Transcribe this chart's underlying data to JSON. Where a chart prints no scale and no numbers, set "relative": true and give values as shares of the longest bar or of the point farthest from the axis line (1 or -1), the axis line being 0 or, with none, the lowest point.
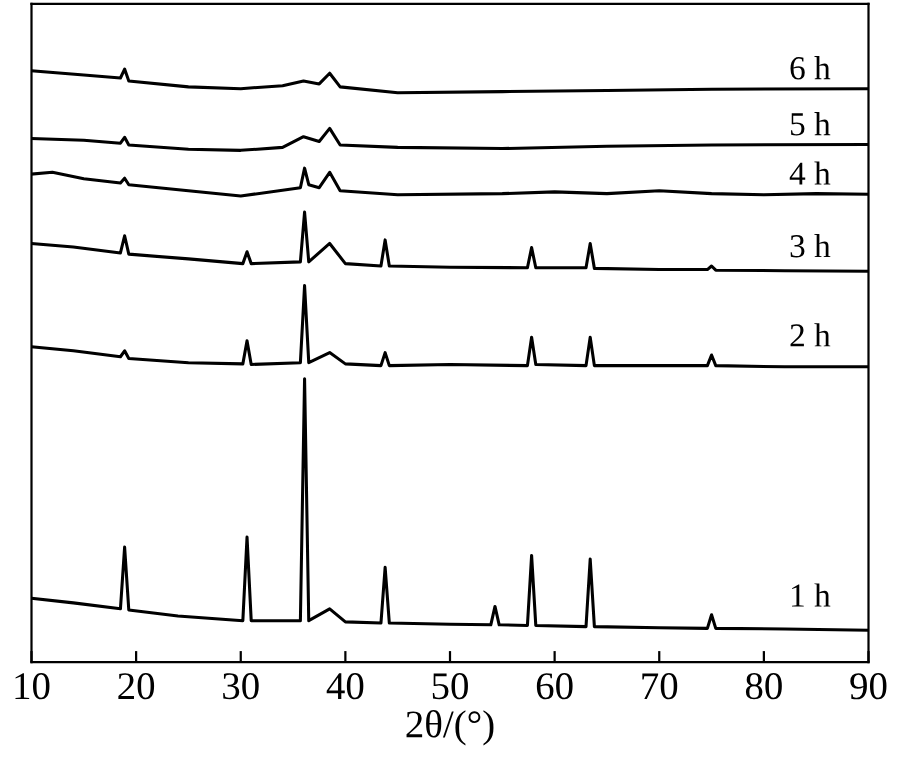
{
  "chart_data": {
    "type": "line",
    "relative": true,
    "xlabel": "2θ/(°)",
    "xlim": [
      10,
      90
    ],
    "xticks": [
      10,
      20,
      30,
      40,
      50,
      60,
      70,
      80,
      90
    ],
    "tick_labels": "x",
    "grid": false,
    "legend": false,
    "marker": "none",
    "line_style": "solid",
    "series": [
      {
        "name": "1 h",
        "color": "#000000",
        "x": [
          10,
          14,
          18.5,
          18.9,
          19.3,
          24,
          30.2,
          30.6,
          31,
          35.7,
          36.1,
          36.5,
          38.5,
          40,
          43.4,
          43.8,
          44.2,
          50,
          53.9,
          54.3,
          54.7,
          57.4,
          57.8,
          58.2,
          63,
          63.4,
          63.8,
          70,
          74.6,
          75,
          75.4,
          82,
          90
        ],
        "values": [
          0.108,
          0.1,
          0.09,
          0.194,
          0.088,
          0.078,
          0.07,
          0.211,
          0.07,
          0.07,
          0.478,
          0.07,
          0.09,
          0.068,
          0.066,
          0.16,
          0.066,
          0.064,
          0.063,
          0.094,
          0.063,
          0.062,
          0.18,
          0.062,
          0.06,
          0.174,
          0.06,
          0.058,
          0.057,
          0.08,
          0.057,
          0.056,
          0.054
        ]
      },
      {
        "name": "2 h",
        "color": "#000000",
        "x": [
          10,
          14,
          18.5,
          18.9,
          19.3,
          25,
          30.2,
          30.6,
          31,
          35.7,
          36.1,
          36.5,
          38.5,
          40,
          43.4,
          43.8,
          44.2,
          50,
          57.4,
          57.8,
          58.2,
          63,
          63.4,
          63.8,
          70,
          74.6,
          75,
          75.4,
          82,
          90
        ],
        "values": [
          0.532,
          0.525,
          0.515,
          0.525,
          0.512,
          0.505,
          0.503,
          0.542,
          0.502,
          0.505,
          0.635,
          0.505,
          0.522,
          0.503,
          0.5,
          0.522,
          0.5,
          0.502,
          0.5,
          0.548,
          0.502,
          0.5,
          0.548,
          0.5,
          0.5,
          0.5,
          0.518,
          0.5,
          0.498,
          0.498
        ]
      },
      {
        "name": "3 h",
        "color": "#000000",
        "x": [
          10,
          14,
          18.5,
          18.9,
          19.3,
          25,
          30.2,
          30.6,
          31,
          35.7,
          36.1,
          36.5,
          38.5,
          40,
          43.4,
          43.8,
          44.2,
          50,
          57.4,
          57.8,
          58.2,
          63,
          63.4,
          63.8,
          70,
          74.6,
          75,
          75.4,
          82,
          90
        ],
        "values": [
          0.706,
          0.7,
          0.69,
          0.719,
          0.688,
          0.68,
          0.672,
          0.692,
          0.672,
          0.675,
          0.759,
          0.675,
          0.706,
          0.672,
          0.668,
          0.712,
          0.668,
          0.666,
          0.665,
          0.699,
          0.665,
          0.665,
          0.706,
          0.664,
          0.662,
          0.662,
          0.668,
          0.661,
          0.66,
          0.659
        ]
      },
      {
        "name": "4 h",
        "color": "#000000",
        "x": [
          10,
          12,
          15,
          18.5,
          18.9,
          19.3,
          25,
          30,
          35.7,
          36.1,
          36.5,
          37.5,
          38.5,
          39.5,
          45,
          55,
          60,
          65,
          70,
          75,
          80,
          85,
          90
        ],
        "values": [
          0.823,
          0.826,
          0.815,
          0.808,
          0.816,
          0.805,
          0.795,
          0.786,
          0.8,
          0.833,
          0.805,
          0.8,
          0.826,
          0.795,
          0.788,
          0.79,
          0.793,
          0.79,
          0.795,
          0.79,
          0.788,
          0.79,
          0.789
        ]
      },
      {
        "name": "5 h",
        "color": "#000000",
        "x": [
          10,
          15,
          18.5,
          18.9,
          19.3,
          25,
          30,
          34,
          36,
          37.5,
          38.5,
          39.5,
          45,
          55,
          65,
          75,
          90
        ],
        "values": [
          0.883,
          0.88,
          0.875,
          0.885,
          0.872,
          0.865,
          0.863,
          0.868,
          0.886,
          0.878,
          0.9,
          0.872,
          0.868,
          0.866,
          0.87,
          0.872,
          0.873
        ]
      },
      {
        "name": "6 h",
        "color": "#000000",
        "x": [
          10,
          15,
          18.5,
          18.9,
          19.3,
          25,
          30,
          34,
          36,
          37.5,
          38.5,
          39.5,
          45,
          55,
          65,
          75,
          90
        ],
        "values": [
          0.997,
          0.99,
          0.985,
          1.0,
          0.98,
          0.97,
          0.967,
          0.972,
          0.98,
          0.975,
          0.993,
          0.97,
          0.96,
          0.962,
          0.964,
          0.966,
          0.967
        ]
      }
    ]
  }
}
